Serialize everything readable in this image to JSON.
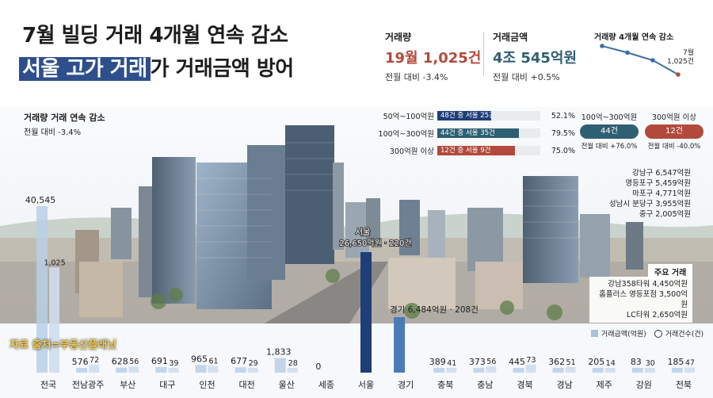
{
  "colors": {
    "navy": "#1f3e78",
    "teal": "#2e5f73",
    "red": "#b14a3c",
    "bar": "#b8cfe6",
    "bar_dark": "#4a7bb5",
    "line": "#3b6fa0"
  },
  "headline": {
    "line1": "7월 빌딩 거래 4개월 연속 감소",
    "line2_highlight": "서울 고가 거래",
    "line2_rest": "가 거래금액 방어"
  },
  "kpi": {
    "volume": {
      "title": "거래량",
      "value": "19월 1,025건",
      "sub": "전월 대비 -3.4%"
    },
    "amount": {
      "title": "거래금액",
      "value": "4조 545억원",
      "sub": "전월 대비 +0.5%"
    },
    "trend": {
      "title": "거래량 4개월 연속 감소",
      "label_month": "7월",
      "label_value": "1,025건",
      "values": [
        4,
        3.3,
        2.5,
        1
      ]
    }
  },
  "left_note": {
    "title": "거래량 거래 연속 감소",
    "sub": "전월 대비 -3.4%"
  },
  "price_bands": [
    {
      "label": "50억~100억원",
      "inner": "48건 중 서울 25건",
      "pct": "52.1%",
      "value": 52.1,
      "color": "#1f3e78"
    },
    {
      "label": "100억~300억원",
      "inner": "44건 중 서울 35건",
      "pct": "79.5%",
      "value": 79.5,
      "color": "#2e5f73"
    },
    {
      "label": "300억원 이상",
      "inner": "12건 중 서울 9건",
      "pct": "75.0%",
      "value": 75.0,
      "color": "#b14a3c"
    }
  ],
  "pills": [
    {
      "label": "100억~300억원",
      "value": "44건",
      "sub": "전월 대비 +76.0%",
      "color": "#2e5f73"
    },
    {
      "label": "300억원 이상",
      "value": "12건",
      "sub": "전월 대비 -40.0%",
      "color": "#b14a3c"
    }
  ],
  "districts": [
    "강남구 6,547억원",
    "영등포구 5,459억원",
    "마포구 4,771억원",
    "성남시 분당구 3,955억원",
    "중구 2,005억원"
  ],
  "major_deals": {
    "title": "주요 거래",
    "items": [
      "강남358타워 4,450억원",
      "홈플러스 영등포점 3,500억원",
      "LC타워 2,650억원"
    ]
  },
  "source": "자료 출처=부동산플래닛",
  "legend": {
    "amount": "거래금액(억원)",
    "count": "거래건수(건)"
  },
  "chart_data": {
    "type": "bar",
    "categories": [
      "전국",
      "전남광주",
      "부산",
      "대구",
      "인천",
      "대전",
      "울산",
      "세종",
      "서울",
      "경기",
      "충북",
      "충남",
      "경북",
      "경남",
      "제주",
      "강원",
      "전북"
    ],
    "series": [
      {
        "name": "거래금액(억원)",
        "values": [
          40545,
          576,
          628,
          691,
          965,
          677,
          1833,
          0,
          26650,
          6484,
          389,
          373,
          445,
          362,
          205,
          83,
          185
        ]
      },
      {
        "name": "거래건수(건)",
        "values": [
          1025,
          72,
          56,
          39,
          61,
          29,
          28,
          null,
          220,
          208,
          41,
          56,
          73,
          51,
          14,
          30,
          47
        ]
      }
    ],
    "amount_labels": [
      "40,545",
      "576",
      "628",
      "691",
      "965",
      "677",
      "1,833",
      "0",
      "",
      "",
      "389",
      "373",
      "445",
      "362",
      "205",
      "83",
      "185"
    ],
    "count_labels": [
      "1,025",
      "72",
      "56",
      "39",
      "61",
      "29",
      "28",
      "",
      "",
      "",
      "41",
      "56",
      "73",
      "51",
      "14",
      "30",
      "47"
    ],
    "seoul_label": "서울\n26,650억원 · 220건",
    "seoul_name": "서울",
    "seoul_detail": "26,650억원 · 220건",
    "gyeonggi_label": "경기 6,484억원 · 208건",
    "legend_position": "bottom-right"
  }
}
